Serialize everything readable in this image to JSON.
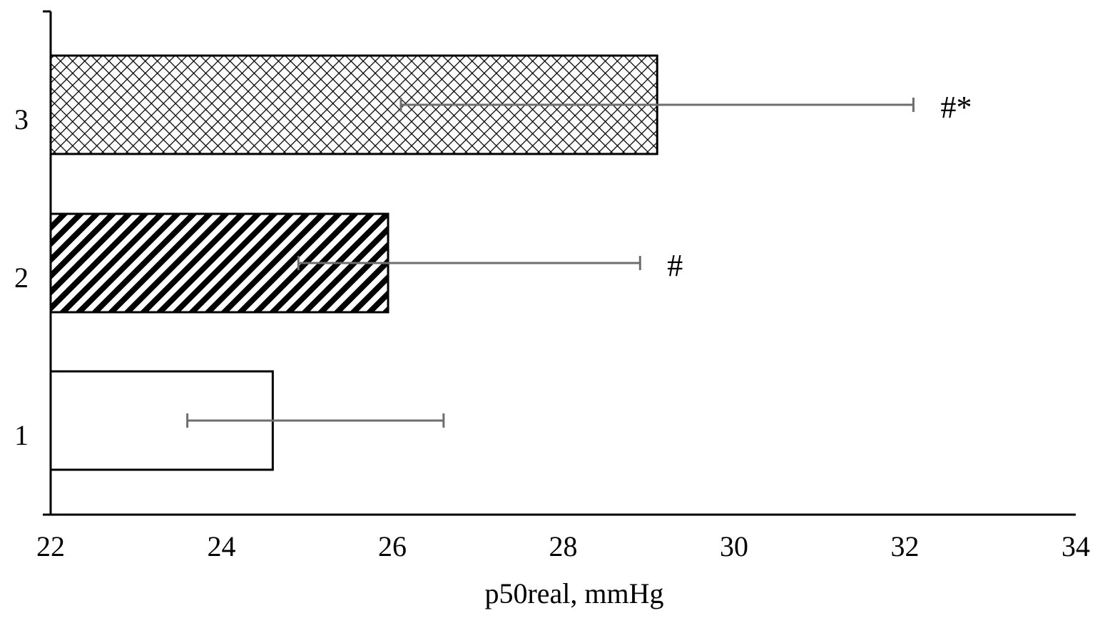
{
  "chart_data": {
    "type": "bar",
    "orientation": "horizontal",
    "categories": [
      "1",
      "2",
      "3"
    ],
    "values": [
      24.6,
      25.95,
      29.1
    ],
    "error": [
      {
        "low": 23.6,
        "high": 26.6
      },
      {
        "low": 24.9,
        "high": 28.9
      },
      {
        "low": 26.1,
        "high": 32.1
      }
    ],
    "bar_styles": [
      "plain",
      "diagonal-hatch",
      "crosshatch"
    ],
    "annotations": [
      "",
      "#",
      "#*"
    ],
    "x_ticks": [
      "22",
      "24",
      "26",
      "28",
      "30",
      "32",
      "34"
    ],
    "xlim": [
      22,
      34
    ],
    "xlabel": "p50real, mmHg",
    "ylabel": "",
    "title": "",
    "grid": false,
    "legend": "none"
  },
  "colors": {
    "bar_fill": "#ffffff",
    "bar_edge": "#000000",
    "error_bar": "#6e6e6e",
    "axis": "#000000"
  }
}
